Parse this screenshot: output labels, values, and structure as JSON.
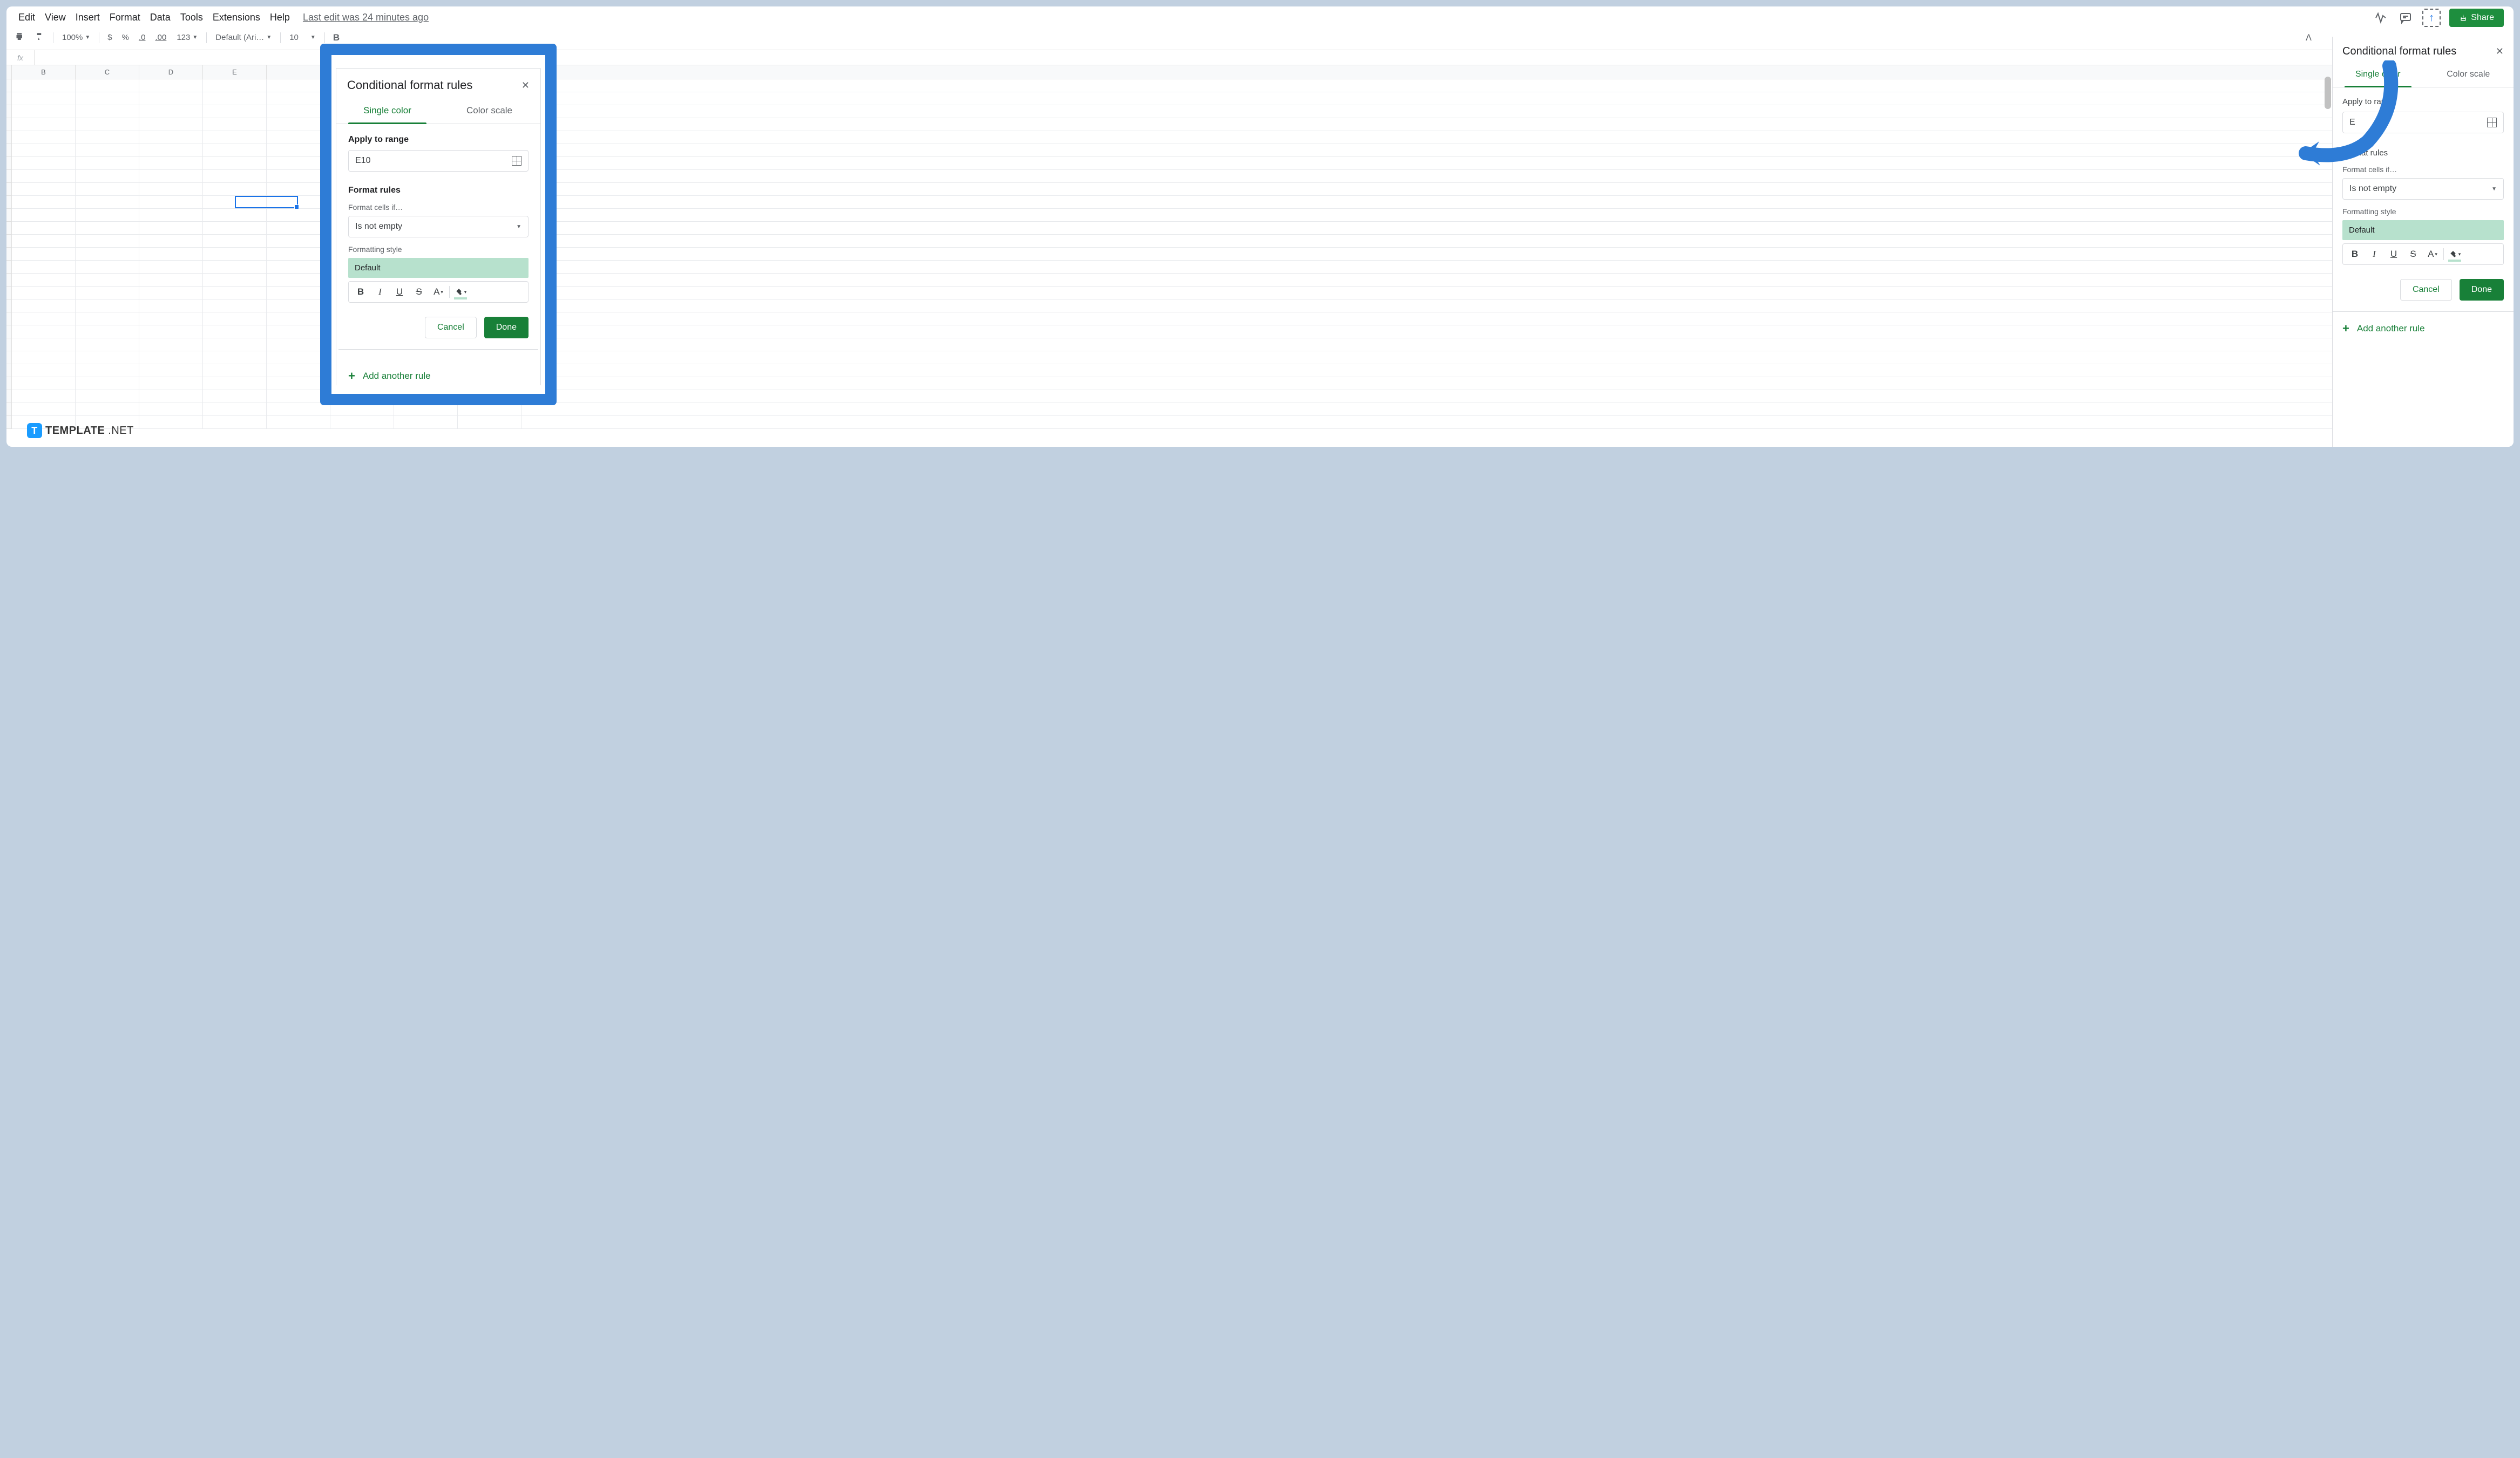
{
  "menu": {
    "items": [
      "Edit",
      "View",
      "Insert",
      "Format",
      "Data",
      "Tools",
      "Extensions",
      "Help"
    ],
    "last_edit": "Last edit was 24 minutes ago"
  },
  "share_label": "Share",
  "toolbar": {
    "zoom": "100%",
    "currency": "$",
    "percent": "%",
    "dec_dec": ".0",
    "inc_dec": ".00",
    "numfmt": "123",
    "font": "Default (Ari…",
    "font_size": "10",
    "bold": "B"
  },
  "columns": [
    "B",
    "C",
    "D",
    "E"
  ],
  "selected_cell": "E10",
  "panel": {
    "title": "Conditional format rules",
    "tab_single": "Single color",
    "tab_scale": "Color scale",
    "apply_label": "Apply to range",
    "range_value": "E10",
    "format_rules_label": "Format rules",
    "format_cells_if": "Format cells if…",
    "condition": "Is not empty",
    "formatting_style_label": "Formatting style",
    "default_style": "Default",
    "cancel": "Cancel",
    "done": "Done",
    "add_rule": "Add another rule"
  },
  "side_panel_partial": {
    "apply_label": "Apply to range",
    "range_partial": "E"
  },
  "colors": {
    "accent_green": "#188038",
    "swatch_green": "#b7e1cd",
    "highlight_blue": "#2e7cd6",
    "arrow_blue": "#2e7cd6",
    "share_green": "#1e8e3e",
    "selection_blue": "#1a73e8"
  },
  "badge": {
    "text": "TEMPLATE",
    "suffix": ".NET"
  }
}
